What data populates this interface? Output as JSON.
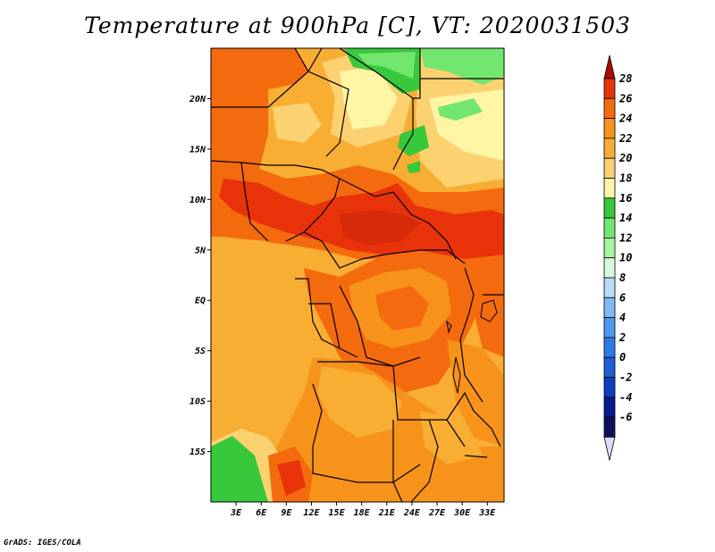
{
  "title": "Temperature at 900hPa [C], VT: 2020031503",
  "credit": "GrADS: IGES/COLA",
  "map": {
    "lat_labels": [
      {
        "label": "20N",
        "lat": 20
      },
      {
        "label": "15N",
        "lat": 15
      },
      {
        "label": "10N",
        "lat": 10
      },
      {
        "label": "5N",
        "lat": 5
      },
      {
        "label": "EQ",
        "lat": 0
      },
      {
        "label": "5S",
        "lat": -5
      },
      {
        "label": "10S",
        "lat": -10
      },
      {
        "label": "15S",
        "lat": -15
      }
    ],
    "lon_labels": [
      {
        "label": "3E",
        "lon": 3
      },
      {
        "label": "6E",
        "lon": 6
      },
      {
        "label": "9E",
        "lon": 9
      },
      {
        "label": "12E",
        "lon": 12
      },
      {
        "label": "15E",
        "lon": 15
      },
      {
        "label": "18E",
        "lon": 18
      },
      {
        "label": "21E",
        "lon": 21
      },
      {
        "label": "24E",
        "lon": 24
      },
      {
        "label": "27E",
        "lon": 27
      },
      {
        "label": "30E",
        "lon": 30
      },
      {
        "label": "33E",
        "lon": 33
      }
    ],
    "lon_range": [
      0,
      35
    ],
    "lat_range": [
      -20,
      25
    ]
  },
  "colorbar": {
    "labels": [
      "28",
      "26",
      "24",
      "22",
      "20",
      "18",
      "16",
      "14",
      "12",
      "10",
      "8",
      "6",
      "4",
      "2",
      "0",
      "-2",
      "-4",
      "-6"
    ],
    "colors": [
      "#aa0a00",
      "#e8320a",
      "#f46a0e",
      "#f7921a",
      "#f8ad33",
      "#fcd271",
      "#fef5a5",
      "#37c83c",
      "#73e66f",
      "#a6f59f",
      "#d6fadd",
      "#b8dcfb",
      "#7ebaf8",
      "#4e99ef",
      "#2b7be6",
      "#1b5fd6",
      "#0e3ebd",
      "#081a8c",
      "#0b0f5c",
      "#dadafa"
    ]
  }
}
